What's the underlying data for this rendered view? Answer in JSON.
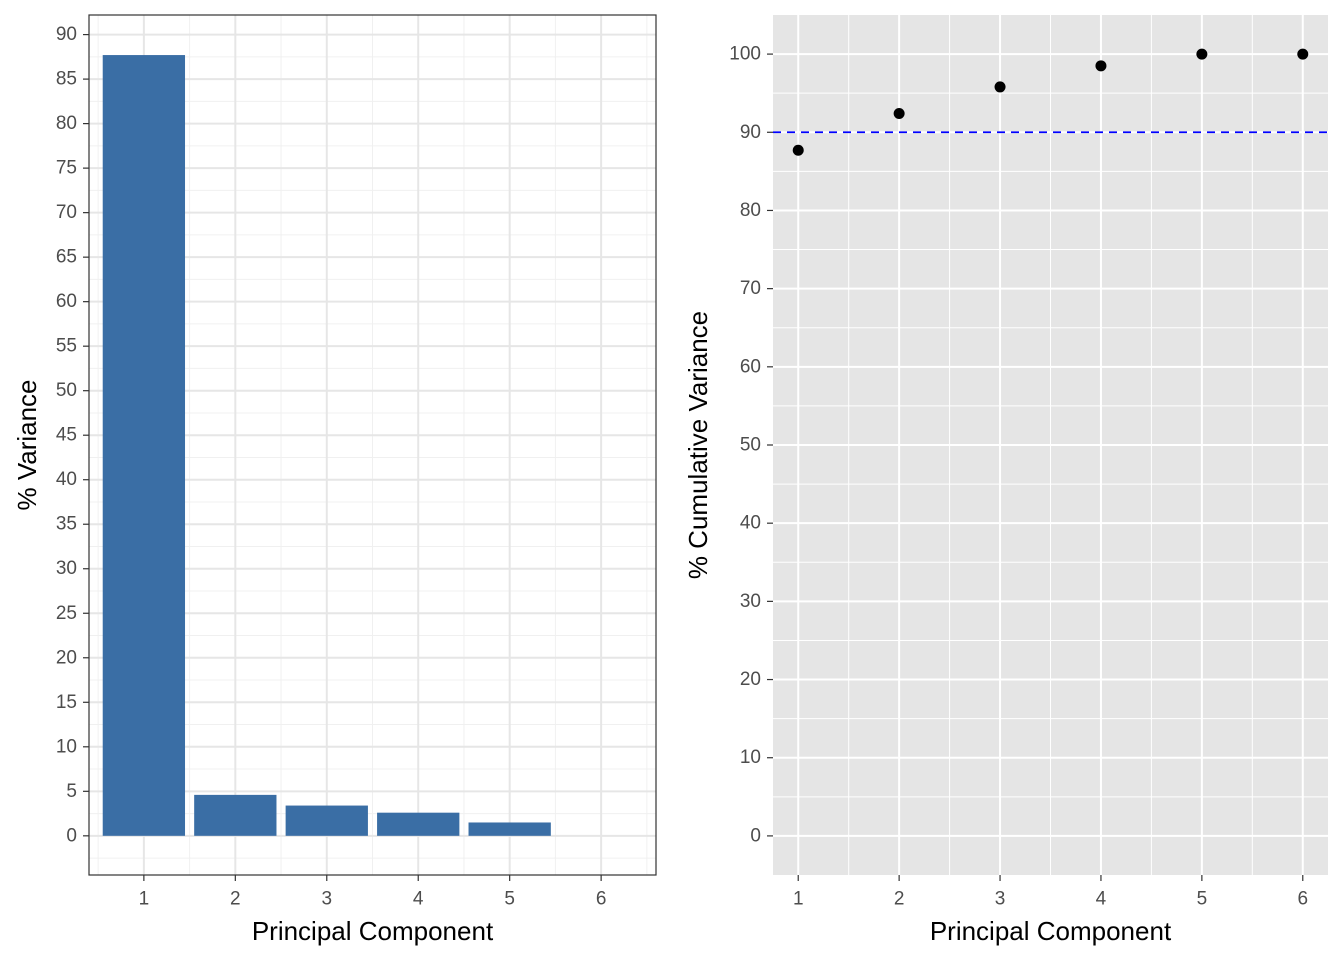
{
  "chart_data": [
    {
      "type": "bar",
      "theme": "bw",
      "xlabel": "Principal Component",
      "ylabel": "% Variance",
      "categories": [
        "1",
        "2",
        "3",
        "4",
        "5",
        "6"
      ],
      "values": [
        87.7,
        4.6,
        3.4,
        2.6,
        1.5,
        0.0
      ],
      "ylim": [
        -4.4,
        92.2
      ],
      "y_ticks": [
        0,
        5,
        10,
        15,
        20,
        25,
        30,
        35,
        40,
        45,
        50,
        55,
        60,
        65,
        70,
        75,
        80,
        85,
        90
      ],
      "y_tick_labels": [
        "0",
        "5",
        "10",
        "15",
        "20",
        "25",
        "30",
        "35",
        "40",
        "45",
        "50",
        "55",
        "60",
        "65",
        "70",
        "75",
        "80",
        "85",
        "90"
      ],
      "bar_color": "#3a6ea5",
      "grid": true
    },
    {
      "type": "scatter",
      "theme": "gray",
      "xlabel": "Principal Component",
      "ylabel": "% Cumulative Variance",
      "x": [
        1,
        2,
        3,
        4,
        5,
        6
      ],
      "y": [
        87.7,
        92.4,
        95.8,
        98.5,
        100.0,
        100.0
      ],
      "x_ticks": [
        1,
        2,
        3,
        4,
        5,
        6
      ],
      "x_tick_labels": [
        "1",
        "2",
        "3",
        "4",
        "5",
        "6"
      ],
      "xlim": [
        0.75,
        6.25
      ],
      "ylim": [
        -5,
        105
      ],
      "y_ticks": [
        0,
        10,
        20,
        30,
        40,
        50,
        60,
        70,
        80,
        90,
        100
      ],
      "y_tick_labels": [
        "0",
        "10",
        "20",
        "30",
        "40",
        "50",
        "60",
        "70",
        "80",
        "90",
        "100"
      ],
      "point_color": "#000000",
      "reference_line": {
        "y": 90,
        "color": "#0000ff",
        "style": "dashed"
      },
      "grid": true
    }
  ]
}
